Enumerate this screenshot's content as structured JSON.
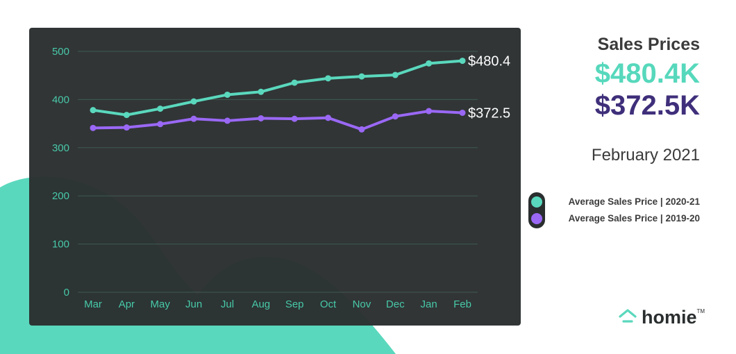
{
  "colors": {
    "current": "#5ad8bd",
    "prior": "#9a68f5",
    "panel": "#2a2e2f",
    "accent_shape": "#5ad8bd",
    "current_text": "#56d8bc",
    "prior_text": "#3f2f7a"
  },
  "header": {
    "title": "Sales Prices",
    "value_current": "$480.4K",
    "value_prior": "$372.5K",
    "date": "February 2021"
  },
  "legend": {
    "items": [
      {
        "label": "Average Sales Price  |  2020-21",
        "color_key": "current"
      },
      {
        "label": "Average Sales Price  |  2019-20",
        "color_key": "prior"
      }
    ]
  },
  "logo": {
    "text": "homie",
    "tm": "TM",
    "icon": "house-icon"
  },
  "chart_data": {
    "type": "line",
    "categories": [
      "Mar",
      "Apr",
      "May",
      "Jun",
      "Jul",
      "Aug",
      "Sep",
      "Oct",
      "Nov",
      "Dec",
      "Jan",
      "Feb"
    ],
    "ylim": [
      0,
      500
    ],
    "yticks": [
      0,
      100,
      200,
      300,
      400,
      500
    ],
    "grid": true,
    "series": [
      {
        "name": "Average Sales Price  |  2020-21",
        "values": [
          378,
          368,
          381,
          396,
          410,
          416,
          435,
          444,
          448,
          451,
          475,
          480.4
        ],
        "end_label": "$480.4"
      },
      {
        "name": "Average Sales Price  |  2019-20",
        "values": [
          341,
          342,
          349,
          360,
          356,
          361,
          360,
          362,
          338,
          365,
          376,
          372.5
        ],
        "end_label": "$372.5"
      }
    ]
  }
}
